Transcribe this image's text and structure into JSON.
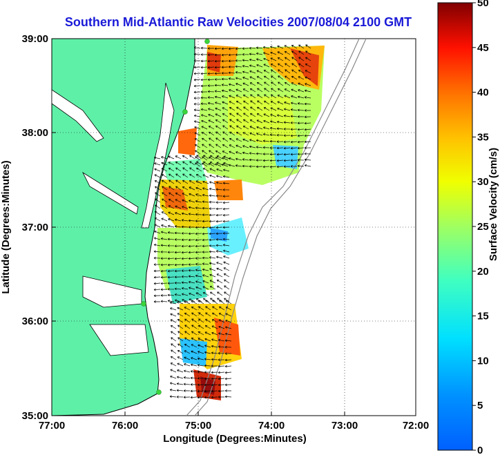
{
  "title": "Southern Mid-Atlantic Raw Velocities 2007/08/04 2100 GMT",
  "map": {
    "xlabel": "Longitude (Degrees:Minutes)",
    "ylabel": "Latitude (Degrees:Minutes)",
    "lon_range": [
      -77,
      -72
    ],
    "lat_range": [
      35,
      39
    ],
    "lon_ticks": [
      "77:00",
      "76:00",
      "75:00",
      "74:00",
      "73:00",
      "72:00"
    ],
    "lat_ticks": [
      "39:00",
      "38:00",
      "37:00",
      "36:00",
      "35:00"
    ],
    "grid": "dotted",
    "land_color": "#5ff0a8",
    "station_color": "#3bd43b"
  },
  "colorbar": {
    "label": "Surface Velocity (cm/s)",
    "range": [
      0,
      50
    ],
    "ticks": [
      "50",
      "45",
      "40",
      "35",
      "30",
      "25",
      "20",
      "15",
      "10",
      "5",
      "0"
    ],
    "colormap": "jet"
  }
}
